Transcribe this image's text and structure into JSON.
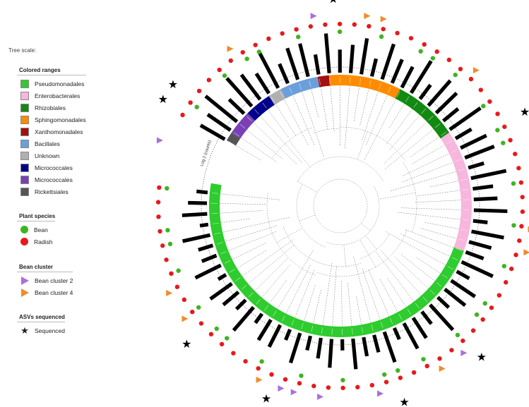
{
  "tree_scale_label": "Tree scale:",
  "branch_label": "Log 2 (counts)",
  "colored_ranges": {
    "title": "Colored ranges",
    "items": [
      {
        "label": "Pseudomonadales",
        "color": "#2ecc2e"
      },
      {
        "label": "Enterobacterales",
        "color": "#f7b6dd"
      },
      {
        "label": "Rhizobiales",
        "color": "#128a12"
      },
      {
        "label": "Sphingomonadales",
        "color": "#ff8c00"
      },
      {
        "label": "Xanthomonadales",
        "color": "#a50f0f"
      },
      {
        "label": "Bacillales",
        "color": "#6a9fdb"
      },
      {
        "label": "Unknown",
        "color": "#b0b0b0"
      },
      {
        "label": "Micrococcales",
        "color": "#00008b"
      },
      {
        "label": "Micrococcales",
        "color": "#7b3fb5"
      },
      {
        "label": "Rickettsiales",
        "color": "#555555"
      }
    ]
  },
  "plant_species": {
    "title": "Plant species",
    "items": [
      {
        "label": "Bean",
        "color": "#3cb521"
      },
      {
        "label": "Radish",
        "color": "#e8191b"
      }
    ]
  },
  "bean_cluster": {
    "title": "Bean cluster",
    "items": [
      {
        "label": "Bean cluster 2",
        "color": "#a970e0"
      },
      {
        "label": "Bean cluster 4",
        "color": "#f08c2a"
      }
    ]
  },
  "asvs_sequenced": {
    "title": "ASVs sequenced",
    "items": [
      {
        "label": "Sequenced",
        "color": "#000000"
      }
    ]
  },
  "ring_arcs": [
    {
      "order": "Rickettsiales",
      "start": 300,
      "end": 304
    },
    {
      "order": "Micrococcales-purple",
      "start": 304,
      "end": 315
    },
    {
      "order": "Micrococcales-navy",
      "start": 315,
      "end": 327
    },
    {
      "order": "Unknown",
      "start": 327,
      "end": 333
    },
    {
      "order": "Bacillales",
      "start": 333,
      "end": 350
    },
    {
      "order": "Xanthomonadales",
      "start": 350,
      "end": 355
    },
    {
      "order": "Sphingomonadales",
      "start": 355,
      "end": 27
    },
    {
      "order": "Rhizobiales",
      "start": 27,
      "end": 56
    },
    {
      "order": "Enterobacterales",
      "start": 56,
      "end": 110
    },
    {
      "order": "Pseudomonadales",
      "start": 110,
      "end": 280
    }
  ],
  "stars_deg": [
    -2,
    63,
    75,
    93,
    97,
    137,
    162,
    174,
    201,
    228,
    301,
    306
  ],
  "triangles": [
    {
      "deg": 352,
      "cluster": "purple"
    },
    {
      "deg": 8,
      "cluster": "orange"
    },
    {
      "deg": 13,
      "cluster": "orange"
    },
    {
      "deg": 45,
      "cluster": "orange"
    },
    {
      "deg": 97,
      "cluster": "orange"
    },
    {
      "deg": 104,
      "cluster": "orange"
    },
    {
      "deg": 140,
      "cluster": "purple"
    },
    {
      "deg": 148,
      "cluster": "orange"
    },
    {
      "deg": 168,
      "cluster": "purple"
    },
    {
      "deg": 186,
      "cluster": "purple"
    },
    {
      "deg": 194,
      "cluster": "purple"
    },
    {
      "deg": 198,
      "cluster": "purple"
    },
    {
      "deg": 205,
      "cluster": "orange"
    },
    {
      "deg": 234,
      "cluster": "orange"
    },
    {
      "deg": 243,
      "cluster": "orange"
    },
    {
      "deg": 290,
      "cluster": "purple"
    },
    {
      "deg": 325,
      "cluster": "orange"
    }
  ]
}
